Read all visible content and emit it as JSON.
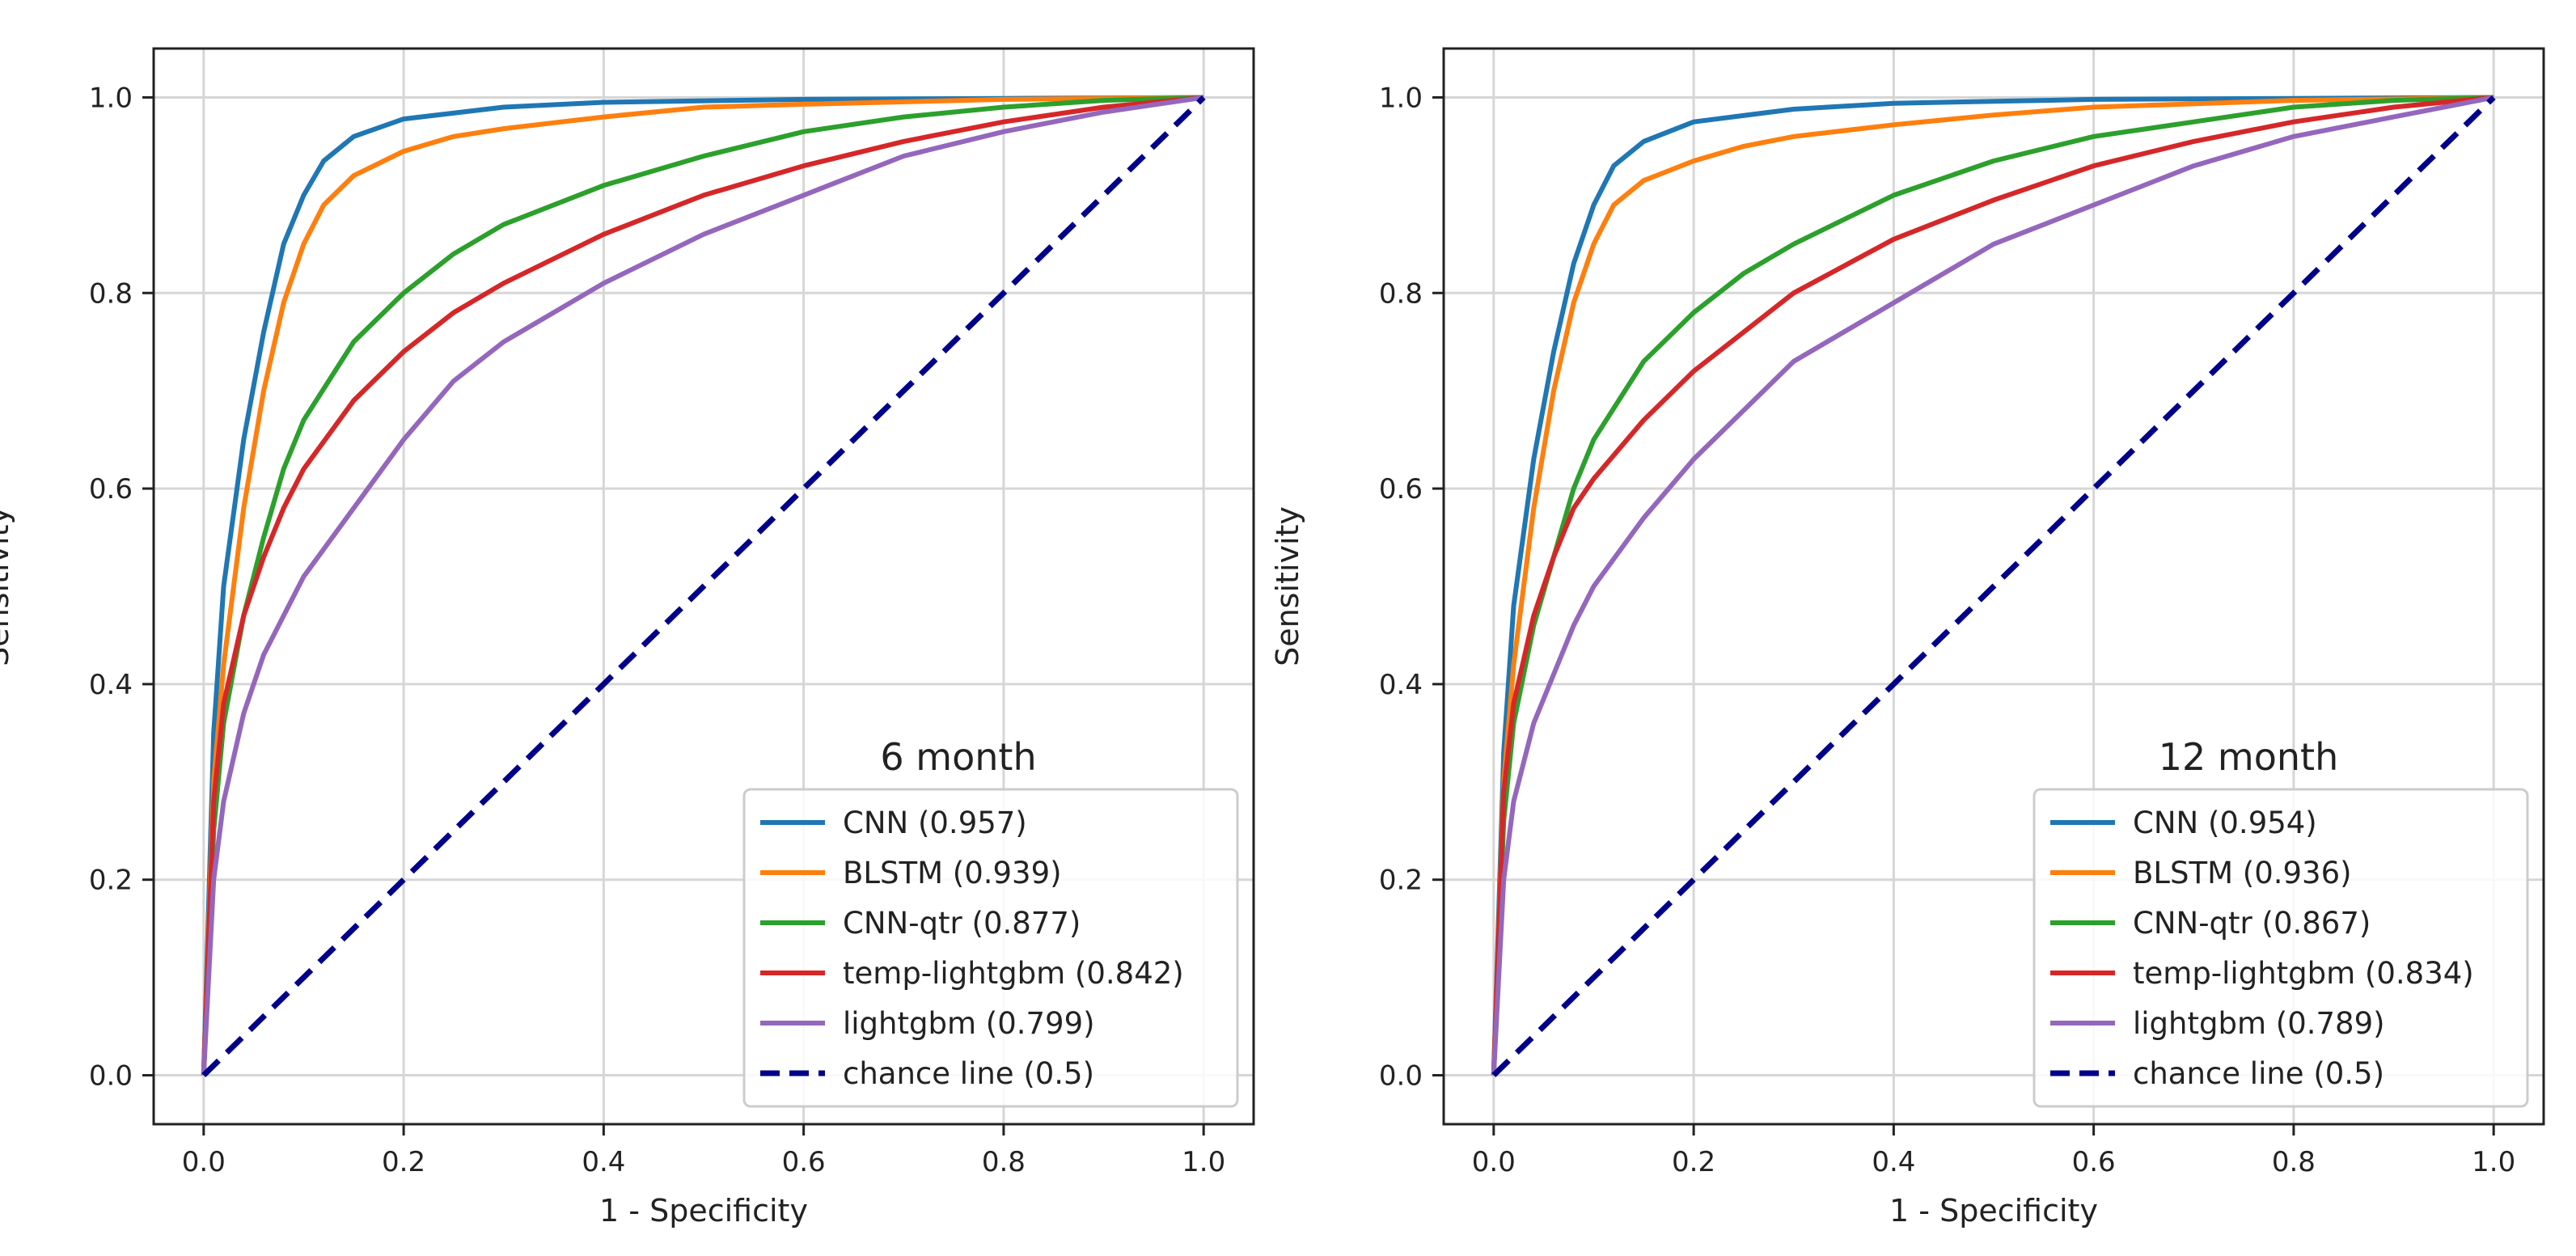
{
  "chart_data": [
    {
      "type": "line",
      "title": "6 month",
      "xlabel": "1 - Specificity",
      "ylabel": "Sensitivity",
      "xlim": [
        -0.05,
        1.05
      ],
      "ylim": [
        -0.05,
        1.05
      ],
      "xticks": [
        "0.0",
        "0.2",
        "0.4",
        "0.6",
        "0.8",
        "1.0"
      ],
      "yticks": [
        "0.0",
        "0.2",
        "0.4",
        "0.6",
        "0.8",
        "1.0"
      ],
      "grid": true,
      "legend_position": "bottom-right",
      "series": [
        {
          "name": "CNN (0.957)",
          "color": "#1f77b4",
          "x": [
            0,
            0.01,
            0.02,
            0.04,
            0.06,
            0.08,
            0.1,
            0.12,
            0.15,
            0.2,
            0.3,
            0.4,
            0.6,
            0.8,
            1.0
          ],
          "y": [
            0,
            0.35,
            0.5,
            0.65,
            0.76,
            0.85,
            0.9,
            0.935,
            0.96,
            0.978,
            0.99,
            0.995,
            0.998,
            0.999,
            1.0
          ]
        },
        {
          "name": "BLSTM (0.939)",
          "color": "#ff7f0e",
          "x": [
            0,
            0.01,
            0.02,
            0.04,
            0.06,
            0.08,
            0.1,
            0.12,
            0.15,
            0.2,
            0.25,
            0.3,
            0.4,
            0.5,
            0.6,
            0.8,
            1.0
          ],
          "y": [
            0,
            0.3,
            0.42,
            0.58,
            0.7,
            0.79,
            0.85,
            0.89,
            0.92,
            0.945,
            0.96,
            0.968,
            0.98,
            0.99,
            0.993,
            0.998,
            1.0
          ]
        },
        {
          "name": "CNN-qtr (0.877)",
          "color": "#2ca02c",
          "x": [
            0,
            0.01,
            0.02,
            0.04,
            0.06,
            0.08,
            0.1,
            0.15,
            0.2,
            0.25,
            0.3,
            0.4,
            0.5,
            0.6,
            0.7,
            0.8,
            0.9,
            1.0
          ],
          "y": [
            0,
            0.25,
            0.36,
            0.47,
            0.55,
            0.62,
            0.67,
            0.75,
            0.8,
            0.84,
            0.87,
            0.91,
            0.94,
            0.965,
            0.98,
            0.99,
            0.997,
            1.0
          ]
        },
        {
          "name": "temp-lightgbm (0.842)",
          "color": "#d62728",
          "x": [
            0,
            0.01,
            0.02,
            0.04,
            0.06,
            0.08,
            0.1,
            0.15,
            0.2,
            0.25,
            0.3,
            0.4,
            0.5,
            0.6,
            0.7,
            0.8,
            0.9,
            1.0
          ],
          "y": [
            0,
            0.28,
            0.38,
            0.47,
            0.53,
            0.58,
            0.62,
            0.69,
            0.74,
            0.78,
            0.81,
            0.86,
            0.9,
            0.93,
            0.955,
            0.975,
            0.99,
            1.0
          ]
        },
        {
          "name": "lightgbm (0.799)",
          "color": "#9467bd",
          "x": [
            0,
            0.01,
            0.02,
            0.04,
            0.06,
            0.08,
            0.1,
            0.15,
            0.2,
            0.25,
            0.3,
            0.4,
            0.5,
            0.6,
            0.7,
            0.8,
            0.9,
            1.0
          ],
          "y": [
            0,
            0.2,
            0.28,
            0.37,
            0.43,
            0.47,
            0.51,
            0.58,
            0.65,
            0.71,
            0.75,
            0.81,
            0.86,
            0.9,
            0.94,
            0.965,
            0.985,
            1.0
          ]
        },
        {
          "name": "chance line (0.5)",
          "color": "#00008b",
          "dashed": true,
          "x": [
            0,
            1
          ],
          "y": [
            0,
            1
          ]
        }
      ]
    },
    {
      "type": "line",
      "title": "12 month",
      "xlabel": "1 - Specificity",
      "ylabel": "Sensitivity",
      "xlim": [
        -0.05,
        1.05
      ],
      "ylim": [
        -0.05,
        1.05
      ],
      "xticks": [
        "0.0",
        "0.2",
        "0.4",
        "0.6",
        "0.8",
        "1.0"
      ],
      "yticks": [
        "0.0",
        "0.2",
        "0.4",
        "0.6",
        "0.8",
        "1.0"
      ],
      "grid": true,
      "legend_position": "bottom-right",
      "series": [
        {
          "name": "CNN (0.954)",
          "color": "#1f77b4",
          "x": [
            0,
            0.01,
            0.02,
            0.04,
            0.06,
            0.08,
            0.1,
            0.12,
            0.15,
            0.2,
            0.3,
            0.4,
            0.6,
            0.8,
            1.0
          ],
          "y": [
            0,
            0.33,
            0.48,
            0.63,
            0.74,
            0.83,
            0.89,
            0.93,
            0.955,
            0.975,
            0.988,
            0.994,
            0.998,
            0.999,
            1.0
          ]
        },
        {
          "name": "BLSTM (0.936)",
          "color": "#ff7f0e",
          "x": [
            0,
            0.01,
            0.02,
            0.04,
            0.06,
            0.08,
            0.1,
            0.12,
            0.15,
            0.2,
            0.25,
            0.3,
            0.4,
            0.5,
            0.6,
            0.8,
            1.0
          ],
          "y": [
            0,
            0.3,
            0.42,
            0.58,
            0.7,
            0.79,
            0.85,
            0.89,
            0.915,
            0.935,
            0.95,
            0.96,
            0.972,
            0.982,
            0.99,
            0.997,
            1.0
          ]
        },
        {
          "name": "CNN-qtr (0.867)",
          "color": "#2ca02c",
          "x": [
            0,
            0.01,
            0.02,
            0.04,
            0.06,
            0.08,
            0.1,
            0.15,
            0.2,
            0.25,
            0.3,
            0.4,
            0.5,
            0.6,
            0.7,
            0.8,
            0.9,
            1.0
          ],
          "y": [
            0,
            0.26,
            0.36,
            0.46,
            0.53,
            0.6,
            0.65,
            0.73,
            0.78,
            0.82,
            0.85,
            0.9,
            0.935,
            0.96,
            0.975,
            0.99,
            0.997,
            1.0
          ]
        },
        {
          "name": "temp-lightgbm (0.834)",
          "color": "#d62728",
          "x": [
            0,
            0.01,
            0.02,
            0.04,
            0.06,
            0.08,
            0.1,
            0.15,
            0.2,
            0.25,
            0.3,
            0.4,
            0.5,
            0.6,
            0.7,
            0.8,
            0.9,
            1.0
          ],
          "y": [
            0,
            0.29,
            0.38,
            0.47,
            0.53,
            0.58,
            0.61,
            0.67,
            0.72,
            0.76,
            0.8,
            0.855,
            0.895,
            0.93,
            0.955,
            0.975,
            0.99,
            1.0
          ]
        },
        {
          "name": "lightgbm (0.789)",
          "color": "#9467bd",
          "x": [
            0,
            0.01,
            0.02,
            0.04,
            0.06,
            0.08,
            0.1,
            0.15,
            0.2,
            0.25,
            0.3,
            0.4,
            0.5,
            0.6,
            0.7,
            0.8,
            0.9,
            1.0
          ],
          "y": [
            0,
            0.2,
            0.28,
            0.36,
            0.41,
            0.46,
            0.5,
            0.57,
            0.63,
            0.68,
            0.73,
            0.79,
            0.85,
            0.89,
            0.93,
            0.96,
            0.98,
            1.0
          ]
        },
        {
          "name": "chance line (0.5)",
          "color": "#00008b",
          "dashed": true,
          "x": [
            0,
            1
          ],
          "y": [
            0,
            1
          ]
        }
      ]
    }
  ]
}
